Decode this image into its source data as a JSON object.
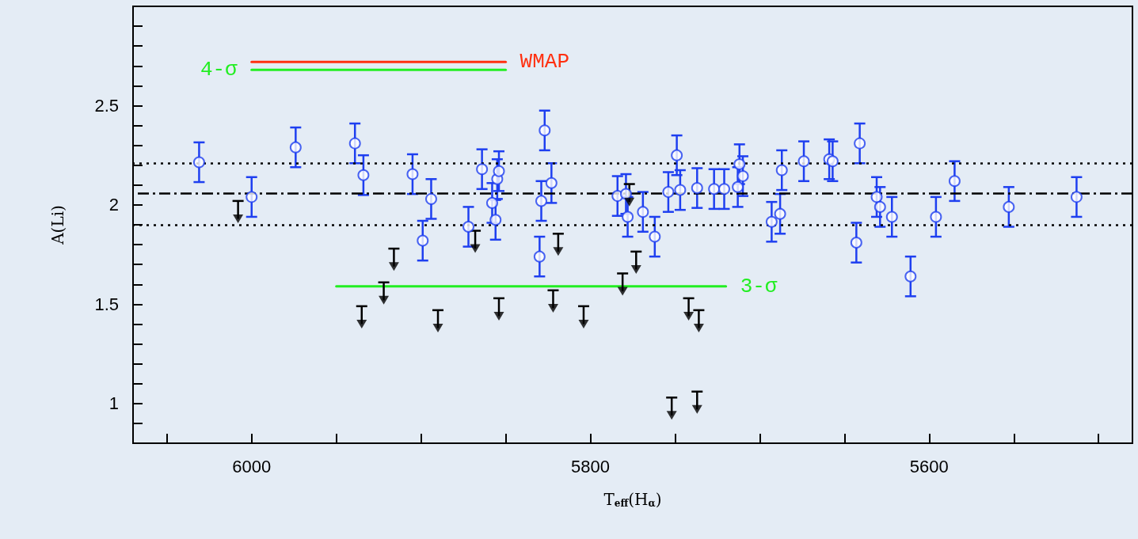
{
  "chart_data": {
    "type": "scatter",
    "xlabel": "T$_{eff}$(H$_{α}$)",
    "ylabel": "A(Li)",
    "xlim": [
      6070,
      5480
    ],
    "xticks": [
      {
        "value": 6050,
        "label": null
      },
      6000,
      {
        "value": 5950,
        "label": null
      },
      {
        "value": 5900,
        "label": null
      },
      {
        "value": 5850,
        "label": null
      },
      5800,
      {
        "value": 5750,
        "label": null
      },
      {
        "value": 5700,
        "label": null
      },
      {
        "value": 5650,
        "label": null
      },
      5600,
      {
        "value": 5550,
        "label": null
      },
      {
        "value": 5500,
        "label": null
      }
    ],
    "ylim": [
      0.8,
      3.0
    ],
    "yticks": [
      {
        "value": 0.8,
        "label": null
      },
      {
        "value": 0.9,
        "label": null
      },
      1,
      {
        "value": 1.1,
        "label": null
      },
      {
        "value": 1.2,
        "label": null
      },
      {
        "value": 1.3,
        "label": null
      },
      {
        "value": 1.4,
        "label": null
      },
      1.5,
      {
        "value": 1.6,
        "label": null
      },
      {
        "value": 1.7,
        "label": null
      },
      {
        "value": 1.8,
        "label": null
      },
      {
        "value": 1.9,
        "label": null
      },
      2,
      {
        "value": 2.1,
        "label": null
      },
      {
        "value": 2.2,
        "label": null
      },
      {
        "value": 2.3,
        "label": null
      },
      {
        "value": 2.4,
        "label": null
      },
      2.5,
      {
        "value": 2.6,
        "label": null
      },
      {
        "value": 2.7,
        "label": null
      },
      {
        "value": 2.8,
        "label": null
      },
      {
        "value": 2.9,
        "label": null
      },
      {
        "value": 3.0,
        "label": null
      }
    ],
    "grid": false,
    "legend": false,
    "series": [
      {
        "marker": "circle",
        "color": "#1e3ff0",
        "x": [
          6031,
          6000,
          5974,
          5939,
          5934,
          5905,
          5894,
          5899,
          5864,
          5872,
          5858,
          5856,
          5855,
          5854,
          5827,
          5829,
          5823,
          5830,
          5784,
          5779,
          5778,
          5769,
          5762,
          5754,
          5749,
          5747,
          5737,
          5727,
          5721,
          5713,
          5712,
          5710,
          5693,
          5688,
          5687,
          5674,
          5659,
          5657,
          5641,
          5643,
          5631,
          5629,
          5622,
          5611,
          5596,
          5585,
          5553,
          5513
        ],
        "values": [
          2.215,
          2.04,
          2.29,
          2.31,
          2.15,
          2.155,
          2.03,
          1.82,
          2.18,
          1.89,
          2.01,
          1.925,
          2.13,
          2.17,
          2.375,
          2.02,
          2.11,
          1.74,
          2.045,
          2.055,
          1.94,
          1.965,
          1.84,
          2.065,
          2.25,
          2.075,
          2.085,
          2.08,
          2.08,
          2.09,
          2.205,
          2.145,
          1.915,
          1.955,
          2.175,
          2.22,
          2.23,
          2.22,
          2.31,
          1.81,
          2.04,
          1.99,
          1.94,
          1.64,
          1.94,
          2.12,
          1.99,
          2.04
        ],
        "errors": [
          0.1,
          0.1,
          0.1,
          0.1,
          0.1,
          0.1,
          0.1,
          0.1,
          0.1,
          0.1,
          0.1,
          0.1,
          0.1,
          0.1,
          0.1,
          0.1,
          0.1,
          0.1,
          0.1,
          0.1,
          0.1,
          0.1,
          0.1,
          0.1,
          0.1,
          0.1,
          0.1,
          0.1,
          0.1,
          0.1,
          0.1,
          0.1,
          0.1,
          0.1,
          0.1,
          0.1,
          0.1,
          0.1,
          0.1,
          0.1,
          0.1,
          0.1,
          0.1,
          0.1,
          0.1,
          0.1,
          0.1,
          0.1
        ]
      },
      {
        "marker": "triangle",
        "color": "#000000",
        "x": [
          6008,
          5916,
          5868,
          5922,
          5935,
          5890,
          5854,
          5819,
          5777,
          5773,
          5781,
          5822,
          5804,
          5742,
          5736,
          5752,
          5737
        ],
        "values": [
          1.93,
          1.69,
          1.78,
          1.52,
          1.4,
          1.38,
          1.44,
          1.765,
          2.015,
          1.675,
          1.565,
          1.48,
          1.4,
          1.44,
          1.38,
          0.94,
          0.97
        ],
        "errors": [
          [
            1.93,
            2.02
          ],
          [
            1.69,
            1.78
          ],
          [
            1.78,
            1.87
          ],
          [
            1.52,
            1.61
          ],
          [
            1.4,
            1.49
          ],
          [
            1.38,
            1.47
          ],
          [
            1.44,
            1.53
          ],
          [
            1.765,
            1.855
          ],
          [
            2.015,
            2.105
          ],
          [
            1.675,
            1.765
          ],
          [
            1.565,
            1.655
          ],
          [
            1.48,
            1.57
          ],
          [
            1.4,
            1.49
          ],
          [
            1.44,
            1.53
          ],
          [
            1.38,
            1.47
          ],
          [
            0.94,
            1.03
          ],
          [
            0.97,
            1.06
          ]
        ]
      },
      {
        "type": "line",
        "name": "3-σ",
        "marker": "none",
        "color": "#22ee22",
        "x": [
          5950,
          5720
        ],
        "values": [
          1.59,
          1.59
        ]
      },
      {
        "type": "line",
        "name": "WMAP",
        "marker": "none",
        "color": "#ff3010",
        "x": [
          6000,
          5850
        ],
        "values": [
          2.72,
          2.72
        ]
      },
      {
        "type": "line",
        "name": "4-σ",
        "marker": "none",
        "color": "#22ee22",
        "x": [
          6000,
          5850
        ],
        "values": [
          2.68,
          2.68
        ]
      }
    ],
    "ref_lines": [
      {
        "axis": "y",
        "value": 2.06,
        "color": "#000000",
        "line_style": "dashed"
      },
      {
        "axis": "y",
        "value": 2.215,
        "color": "#000000",
        "line_style": "dotted"
      },
      {
        "axis": "y",
        "value": 1.9,
        "color": "#000000",
        "line_style": "dotted"
      }
    ]
  }
}
